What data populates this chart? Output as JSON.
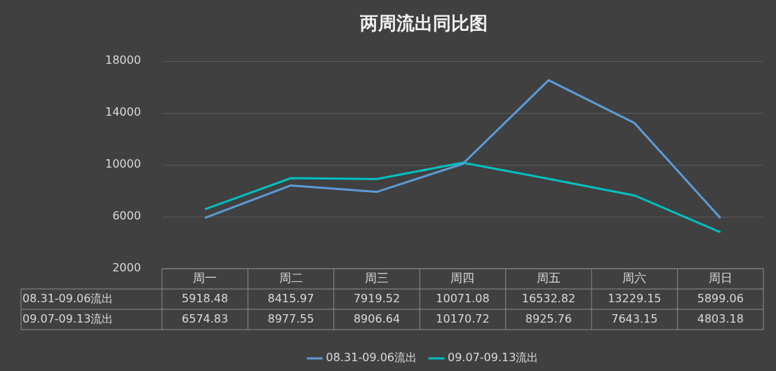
{
  "chart_data": {
    "type": "line",
    "title": "两周流出同比图",
    "categories": [
      "周一",
      "周二",
      "周三",
      "周四",
      "周五",
      "周六",
      "周日"
    ],
    "series": [
      {
        "name": "08.31-09.06流出",
        "color": "#5b9bd5",
        "values": [
          5918.48,
          8415.97,
          7919.52,
          10071.08,
          16532.82,
          13229.15,
          5899.06
        ]
      },
      {
        "name": "09.07-09.13流出",
        "color": "#00c0c0",
        "values": [
          6574.83,
          8977.55,
          8906.64,
          10170.72,
          8925.76,
          7643.15,
          4803.18
        ]
      }
    ],
    "ylim": [
      2000,
      18000
    ],
    "yticks": [
      2000,
      6000,
      10000,
      14000,
      18000
    ],
    "grid": "y",
    "legend": "bottom",
    "marker": "none",
    "line_style": "solid",
    "data_labels": true
  }
}
